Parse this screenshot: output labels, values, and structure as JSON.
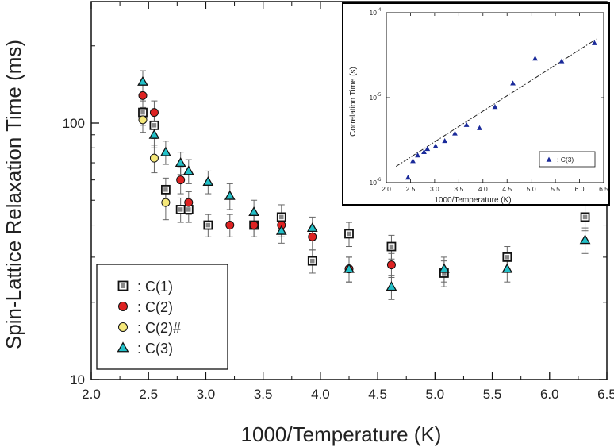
{
  "chart_data": {
    "type": "scatter",
    "title": "",
    "xlabel": "1000/Temperature (K)",
    "ylabel": "Spin-Lattice Relaxation Time (ms)",
    "xlim": [
      2.0,
      6.5
    ],
    "ylim": [
      10,
      300
    ],
    "yscale": "log",
    "x_ticks": [
      "2.0",
      "2.5",
      "3.0",
      "3.5",
      "4.0",
      "4.5",
      "5.0",
      "5.5",
      "6.0",
      "6.5"
    ],
    "y_ticks": [
      "10",
      "100"
    ],
    "legend_position": "bottom-left",
    "series": [
      {
        "name": ": C(1)",
        "marker": "square",
        "color": "#888888",
        "x": [
          2.45,
          2.55,
          2.65,
          2.78,
          2.85,
          3.02,
          3.42,
          3.66,
          3.93,
          4.25,
          4.62,
          5.08,
          5.63,
          6.31
        ],
        "y": [
          110,
          98,
          55,
          46,
          46,
          40,
          40,
          43,
          29,
          37,
          33,
          26,
          30,
          43
        ],
        "err": [
          12,
          11,
          6,
          5,
          5,
          4,
          4,
          5,
          3,
          4,
          3.5,
          3,
          3,
          5
        ]
      },
      {
        "name": ": C(2)",
        "marker": "circle",
        "color": "#dd2222",
        "x": [
          2.45,
          2.55,
          2.78,
          2.85,
          3.21,
          3.42,
          3.66,
          3.93,
          4.25,
          4.62
        ],
        "y": [
          128,
          110,
          60,
          49,
          40,
          40,
          40,
          36,
          27,
          28
        ],
        "err": [
          13,
          12,
          7,
          5,
          4,
          4,
          4,
          4,
          3,
          3
        ]
      },
      {
        "name": ": C(2)#",
        "marker": "circle",
        "color": "#f5e87a",
        "x": [
          2.45,
          2.55,
          2.65
        ],
        "y": [
          103,
          73,
          49
        ],
        "err": [
          11,
          9,
          7
        ]
      },
      {
        "name": ": C(3)",
        "marker": "triangle",
        "color": "#22c0c8",
        "x": [
          2.45,
          2.55,
          2.65,
          2.78,
          2.85,
          3.02,
          3.21,
          3.42,
          3.66,
          3.93,
          4.25,
          4.62,
          5.08,
          5.63,
          6.31
        ],
        "y": [
          145,
          90,
          77,
          70,
          65,
          59,
          52,
          45,
          38,
          39,
          27,
          23,
          27,
          27,
          35
        ],
        "err": [
          15,
          10,
          8,
          7,
          7,
          6,
          6,
          5,
          4,
          4,
          3,
          2.5,
          3,
          3,
          4
        ]
      }
    ],
    "inset": {
      "type": "scatter",
      "xlabel": "1000/Temperature (K)",
      "ylabel": "Correlation Time (s)",
      "xlim": [
        2.0,
        6.5
      ],
      "ylim": [
        1e-06,
        0.0001
      ],
      "yscale": "log",
      "x_ticks": [
        "2.0",
        "2.5",
        "3.0",
        "3.5",
        "4.0",
        "4.5",
        "5.0",
        "5.5",
        "6.0",
        "6.5"
      ],
      "y_tick_bases": [
        "10",
        "10",
        "10"
      ],
      "y_tick_exponents": [
        "-6",
        "-5",
        "-4"
      ],
      "legend_position": "bottom-right",
      "series": [
        {
          "name": ": C(3)",
          "marker": "filled-triangle",
          "color": "#1a2a9a",
          "x": [
            2.45,
            2.55,
            2.65,
            2.78,
            2.85,
            3.02,
            3.21,
            3.42,
            3.66,
            3.93,
            4.25,
            4.62,
            5.08,
            5.63,
            6.31
          ],
          "y": [
            1.15e-06,
            1.8e-06,
            2.1e-06,
            2.3e-06,
            2.5e-06,
            2.7e-06,
            3.1e-06,
            3.8e-06,
            4.8e-06,
            4.4e-06,
            7.8e-06,
            1.48e-05,
            2.9e-05,
            2.7e-05,
            4.4e-05
          ]
        }
      ],
      "fit_line": {
        "style": "dash-dot",
        "color": "#222222",
        "x": [
          2.2,
          6.35
        ],
        "y": [
          1.55e-06,
          4.9e-05
        ]
      }
    }
  }
}
